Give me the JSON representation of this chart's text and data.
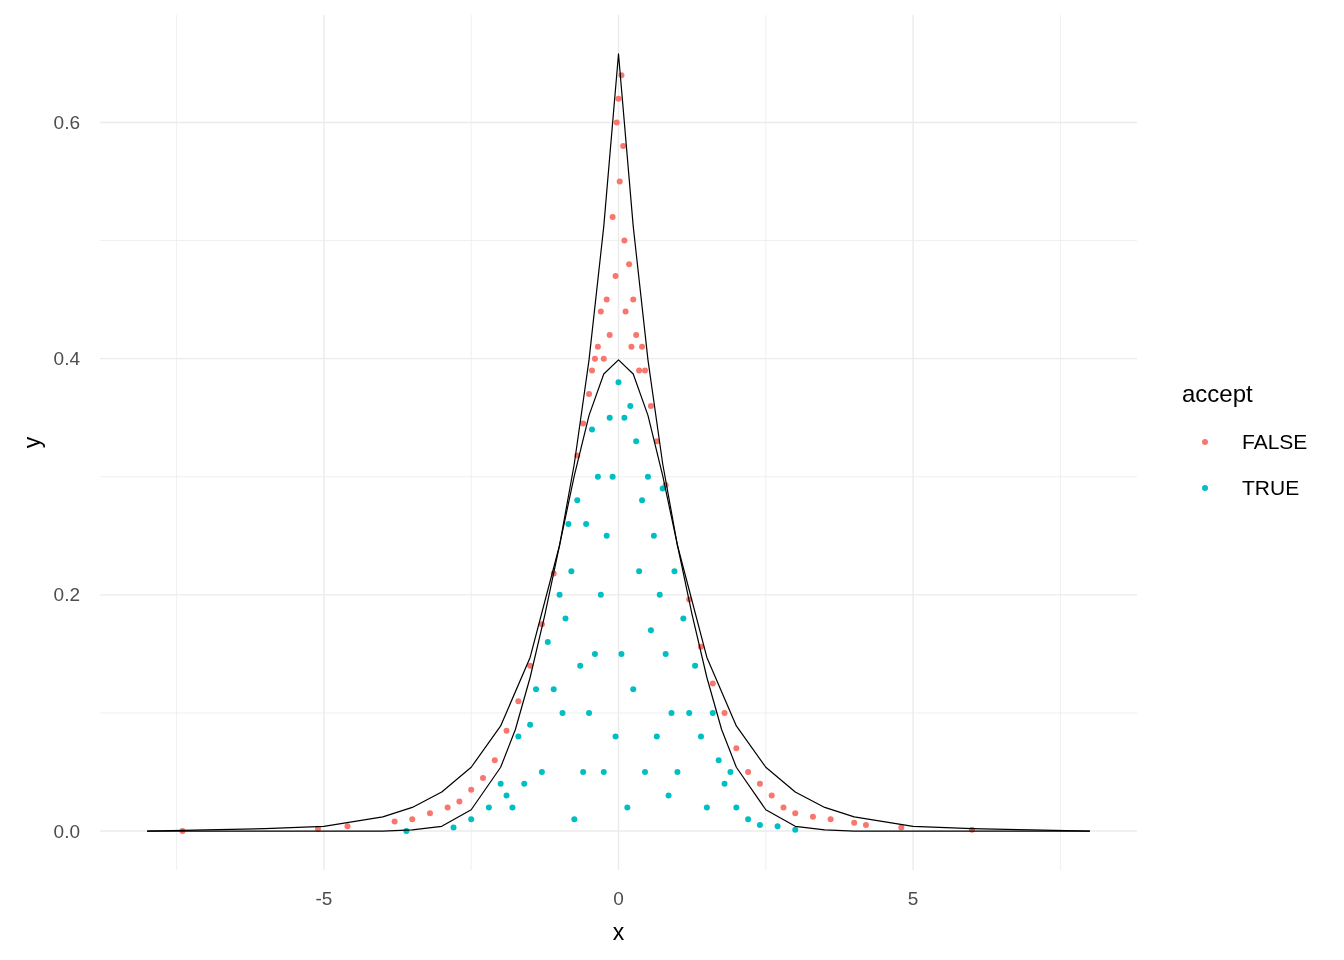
{
  "chart_data": {
    "type": "scatter",
    "xlabel": "x",
    "ylabel": "y",
    "legend_title": "accept",
    "legend": "right",
    "grid": true,
    "marker": "circle",
    "xlim": [
      -8.8,
      8.8
    ],
    "ylim": [
      -0.033,
      0.691
    ],
    "xticks": [
      {
        "value": -7.5,
        "label": null
      },
      -5,
      {
        "value": -2.5,
        "label": null
      },
      0,
      {
        "value": 2.5,
        "label": null
      },
      5,
      {
        "value": 7.5,
        "label": null
      }
    ],
    "yticks": [
      {
        "value": 0,
        "label": "0.0"
      },
      {
        "value": 0.1,
        "label": null
      },
      0.2,
      {
        "value": 0.3,
        "label": null
      },
      0.4,
      {
        "value": 0.5,
        "label": null
      },
      0.6
    ],
    "series": [
      {
        "name": "FALSE",
        "color": "#f8766d",
        "x": [
          0,
          0.02,
          -0.05,
          0.08,
          0.1,
          -0.1,
          0.12,
          -0.15,
          0.18,
          -0.2,
          0.22,
          -0.03,
          0.05,
          0.25,
          -0.25,
          0.3,
          -0.3,
          0.35,
          -0.35,
          0.4,
          -0.4,
          0.45,
          -0.5,
          0.55,
          -0.6,
          0.65,
          -0.7,
          0.8,
          -0.45,
          -1.1,
          1.2,
          -1.3,
          1.4,
          -1.5,
          1.6,
          -1.7,
          1.8,
          -1.9,
          2.0,
          -2.1,
          2.2,
          -2.3,
          2.4,
          -2.5,
          2.6,
          -2.7,
          2.8,
          -2.9,
          3.0,
          -3.2,
          3.3,
          -3.5,
          3.6,
          -3.8,
          4.0,
          4.2,
          -4.6,
          4.8,
          -5.1,
          6.0,
          -7.4
        ],
        "values": [
          0.62,
          0.55,
          0.47,
          0.58,
          0.5,
          0.52,
          0.44,
          0.42,
          0.48,
          0.45,
          0.41,
          0.6,
          0.64,
          0.45,
          0.4,
          0.42,
          0.44,
          0.39,
          0.41,
          0.41,
          0.4,
          0.39,
          0.37,
          0.36,
          0.345,
          0.33,
          0.318,
          0.293,
          0.39,
          0.218,
          0.196,
          0.175,
          0.156,
          0.14,
          0.125,
          0.11,
          0.1,
          0.085,
          0.07,
          0.06,
          0.05,
          0.045,
          0.04,
          0.035,
          0.03,
          0.025,
          0.02,
          0.02,
          0.015,
          0.015,
          0.012,
          0.01,
          0.01,
          0.008,
          0.007,
          0.005,
          0.004,
          0.003,
          0.002,
          0.001,
          0
        ]
      },
      {
        "name": "TRUE",
        "color": "#00bfc4",
        "x": [
          0,
          0.1,
          -0.1,
          0.2,
          -0.2,
          0.3,
          -0.3,
          0.4,
          -0.4,
          0.5,
          -0.5,
          0.6,
          -0.6,
          0.7,
          -0.7,
          0.8,
          -0.8,
          0.9,
          -0.9,
          1.0,
          -1.0,
          1.1,
          -1.1,
          1.2,
          -1.2,
          1.3,
          -1.3,
          1.4,
          -1.4,
          1.5,
          -1.5,
          1.6,
          -1.6,
          1.7,
          -1.7,
          1.8,
          -1.8,
          1.9,
          -1.9,
          2.0,
          -2.0,
          2.2,
          -2.2,
          2.4,
          -2.5,
          2.7,
          -2.8,
          3.0,
          -3.6,
          0.05,
          -0.05,
          0.15,
          -0.15,
          0.25,
          -0.25,
          0.35,
          -0.35,
          0.45,
          -0.45,
          0.55,
          -0.55,
          0.65,
          -0.65,
          0.75,
          -0.75,
          0.85,
          -0.85,
          0.95,
          -0.95
        ],
        "values": [
          0.38,
          0.35,
          0.3,
          0.36,
          0.25,
          0.33,
          0.2,
          0.28,
          0.15,
          0.3,
          0.1,
          0.25,
          0.05,
          0.2,
          0.28,
          0.15,
          0.22,
          0.1,
          0.18,
          0.05,
          0.2,
          0.18,
          0.12,
          0.1,
          0.16,
          0.14,
          0.05,
          0.08,
          0.12,
          0.02,
          0.09,
          0.1,
          0.04,
          0.06,
          0.08,
          0.04,
          0.02,
          0.05,
          0.03,
          0.02,
          0.04,
          0.01,
          0.02,
          0.005,
          0.01,
          0.004,
          0.003,
          0.001,
          0,
          0.15,
          0.08,
          0.02,
          0.35,
          0.12,
          0.05,
          0.22,
          0.3,
          0.05,
          0.34,
          0.17,
          0.26,
          0.08,
          0.14,
          0.29,
          0.01,
          0.03,
          0.26,
          0.22,
          0.1
        ]
      },
      {
        "type": "line",
        "marker": "none",
        "color": "#000000",
        "x": [
          -8,
          -7,
          -6,
          -5,
          -4,
          -3.5,
          -3,
          -2.5,
          -2,
          -1.5,
          -1,
          -0.75,
          -0.5,
          -0.25,
          0,
          0.25,
          0.5,
          0.75,
          1,
          1.5,
          2,
          2.5,
          3,
          3.5,
          4,
          5,
          6,
          7,
          8
        ],
        "values": [
          0,
          0.001,
          0.002,
          0.004,
          0.012,
          0.02,
          0.033,
          0.054,
          0.089,
          0.147,
          0.242,
          0.311,
          0.399,
          0.512,
          0.658,
          0.512,
          0.399,
          0.311,
          0.242,
          0.147,
          0.089,
          0.054,
          0.033,
          0.02,
          0.012,
          0.004,
          0.002,
          0.001,
          0
        ]
      },
      {
        "type": "line",
        "marker": "none",
        "color": "#000000",
        "x": [
          -8,
          -5,
          -4,
          -3.5,
          -3,
          -2.5,
          -2,
          -1.75,
          -1.5,
          -1.25,
          -1,
          -0.75,
          -0.5,
          -0.25,
          0,
          0.25,
          0.5,
          0.75,
          1,
          1.25,
          1.5,
          1.75,
          2,
          2.5,
          3,
          3.5,
          4,
          5,
          8
        ],
        "values": [
          0,
          0,
          0,
          0.001,
          0.004,
          0.018,
          0.054,
          0.086,
          0.13,
          0.183,
          0.242,
          0.301,
          0.352,
          0.387,
          0.399,
          0.387,
          0.352,
          0.301,
          0.242,
          0.183,
          0.13,
          0.086,
          0.054,
          0.018,
          0.004,
          0.001,
          0,
          0,
          0
        ]
      }
    ]
  }
}
